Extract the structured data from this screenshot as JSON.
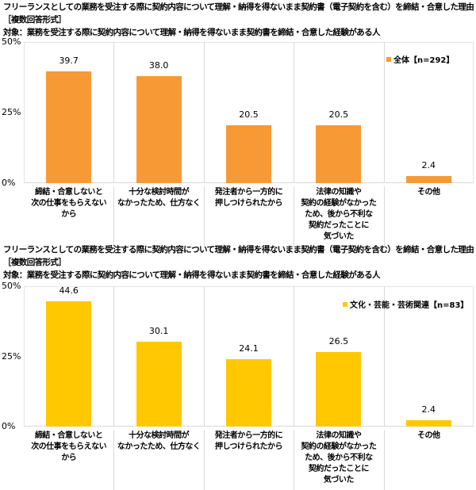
{
  "chart_data": [
    {
      "type": "bar",
      "title": "フリーランスとしての業務を受注する際に契約内容について理解・納得を得ないまま契約書（電子契約を含む）を締結・合意した理由",
      "subtitle": "［複数回答形式］",
      "target": "対象：業務を受注する際に契約内容について理解・納得を得ないまま契約書を締結・合意した経験がある人",
      "categories": [
        "締結・合意しないと\n次の仕事をもらえない\nから",
        "十分な検討時間が\nなかったため、仕方なく",
        "発注者から一方的に\n押しつけられたから",
        "法律の知識や\n契約の経験がなかった\nため、後から不利な\n契約だったことに\n気づいた",
        "その他"
      ],
      "series": [
        {
          "name": "全体【n=292】",
          "values": [
            39.7,
            38.0,
            20.5,
            20.5,
            2.4
          ],
          "color": "#F79A36"
        }
      ],
      "value_labels": [
        "39.7",
        "38.0",
        "20.5",
        "20.5",
        "2.4"
      ],
      "yticks": [
        "0%",
        "25%",
        "50%"
      ],
      "ylim": [
        0,
        50
      ],
      "legend": {
        "label": "全体【n=292】",
        "position": "top-right"
      },
      "grid": false
    },
    {
      "type": "bar",
      "title": "フリーランスとしての業務を受注する際に契約内容について理解・納得を得ないまま契約書（電子契約を含む）を締結・合意した理由",
      "subtitle": "［複数回答形式］",
      "target": "対象：業務を受注する際に契約内容について理解・納得を得ないまま契約書を締結・合意した経験がある人",
      "categories": [
        "締結・合意しないと\n次の仕事をもらえない\nから",
        "十分な検討時間が\nなかったため、仕方なく",
        "発注者から一方的に\n押しつけられたから",
        "法律の知識や\n契約の経験がなかった\nため、後から不利な\n契約だったことに\n気づいた",
        "その他"
      ],
      "series": [
        {
          "name": "文化・芸能・芸術関連【n=83】",
          "values": [
            44.6,
            30.1,
            24.1,
            26.5,
            2.4
          ],
          "color": "#FFC800"
        }
      ],
      "value_labels": [
        "44.6",
        "30.1",
        "24.1",
        "26.5",
        "2.4"
      ],
      "yticks": [
        "0%",
        "25%",
        "50%"
      ],
      "ylim": [
        0,
        50
      ],
      "legend": {
        "label": "文化・芸能・芸術関連【n=83】",
        "position": "top-right"
      },
      "grid": false
    }
  ]
}
